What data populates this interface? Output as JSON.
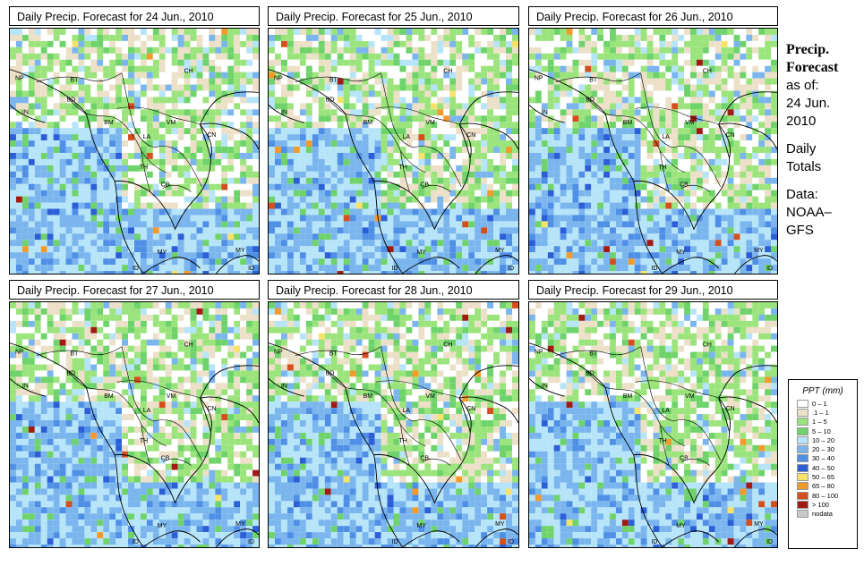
{
  "panels": [
    {
      "title": "Daily Precip. Forecast for  24 Jun., 2010"
    },
    {
      "title": "Daily Precip. Forecast for  25 Jun., 2010"
    },
    {
      "title": "Daily Precip. Forecast for  26 Jun., 2010"
    },
    {
      "title": "Daily Precip. Forecast for  27 Jun., 2010"
    },
    {
      "title": "Daily Precip. Forecast for  28 Jun., 2010"
    },
    {
      "title": "Daily Precip. Forecast for  29 Jun., 2010"
    }
  ],
  "country_labels": {
    "np": "NP",
    "bt": "BT",
    "bd": "BD",
    "in": "IN",
    "ch": "CH",
    "bm": "BM",
    "vm": "VM",
    "la": "LA",
    "th": "TH",
    "cb": "CB",
    "my": "MY",
    "id": "ID",
    "cn": "CN"
  },
  "sidebar": {
    "heading_line1": "Precip.",
    "heading_line2": "Forecast",
    "as_of": "as of:",
    "date_line1": "24 Jun.",
    "date_line2": "2010",
    "daily_line1": "Daily",
    "daily_line2": "Totals",
    "data_line1": "Data:",
    "data_line2": "NOAA–",
    "data_line3": "GFS"
  },
  "legend": {
    "title": "PPT (mm)",
    "items": [
      {
        "label": "0 – 1",
        "color": "#ffffff"
      },
      {
        "label": ".1 – 1",
        "color": "#ede0c8"
      },
      {
        "label": "1 – 5",
        "color": "#9be47c"
      },
      {
        "label": "5 – 10",
        "color": "#6ed36a"
      },
      {
        "label": "10 – 20",
        "color": "#b6e4f8"
      },
      {
        "label": "20 – 30",
        "color": "#7ab5ee"
      },
      {
        "label": "30 – 40",
        "color": "#4f8fe6"
      },
      {
        "label": "40 – 50",
        "color": "#2c5fd6"
      },
      {
        "label": "50 – 65",
        "color": "#f7e36a"
      },
      {
        "label": "65 – 80",
        "color": "#f39a2c"
      },
      {
        "label": "80 – 100",
        "color": "#d54e1e"
      },
      {
        "label": "> 100",
        "color": "#a11b14"
      },
      {
        "label": "nodata",
        "color": "#c9c9c9"
      }
    ]
  }
}
